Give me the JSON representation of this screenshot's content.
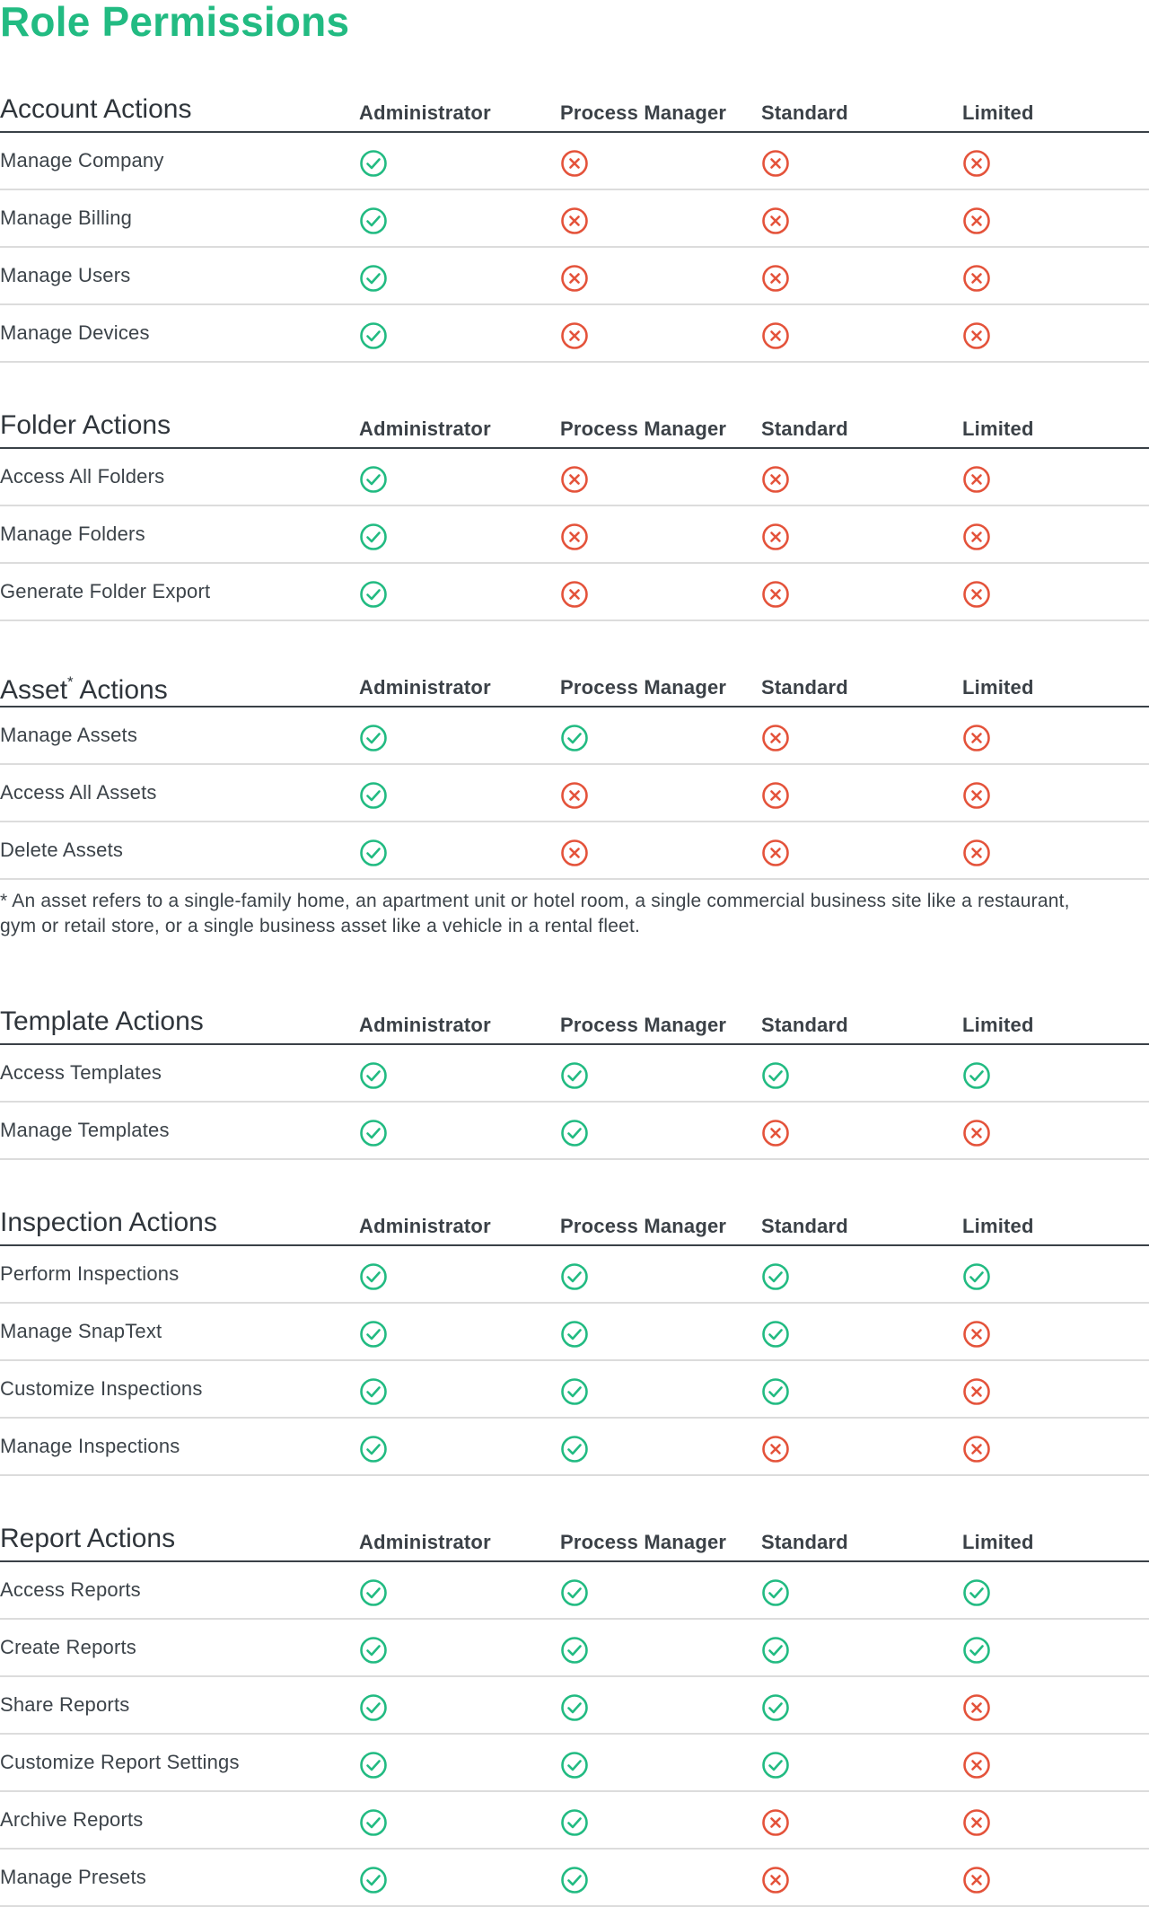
{
  "page": {
    "title": "Role Permissions"
  },
  "columns": [
    "Administrator",
    "Process Manager",
    "Standard",
    "Limited"
  ],
  "colors": {
    "title": "#22bb82",
    "allowed": "#22bb82",
    "denied": "#e4533b"
  },
  "icons": {
    "allowed": "check-circle-icon",
    "denied": "x-circle-icon"
  },
  "sections": [
    {
      "title": "Account Actions",
      "rows": [
        {
          "label": "Manage Company",
          "values": [
            true,
            false,
            false,
            false
          ]
        },
        {
          "label": "Manage Billing",
          "values": [
            true,
            false,
            false,
            false
          ]
        },
        {
          "label": "Manage Users",
          "values": [
            true,
            false,
            false,
            false
          ]
        },
        {
          "label": "Manage Devices",
          "values": [
            true,
            false,
            false,
            false
          ]
        }
      ]
    },
    {
      "title": "Folder Actions",
      "rows": [
        {
          "label": "Access All Folders",
          "values": [
            true,
            false,
            false,
            false
          ]
        },
        {
          "label": "Manage Folders",
          "values": [
            true,
            false,
            false,
            false
          ]
        },
        {
          "label": "Generate Folder Export",
          "values": [
            true,
            false,
            false,
            false
          ]
        }
      ]
    },
    {
      "title": "Asset",
      "title_sup": "*",
      "title_suffix": " Actions",
      "rows": [
        {
          "label": "Manage Assets",
          "values": [
            true,
            true,
            false,
            false
          ]
        },
        {
          "label": "Access All Assets",
          "values": [
            true,
            false,
            false,
            false
          ]
        },
        {
          "label": "Delete Assets",
          "values": [
            true,
            false,
            false,
            false
          ]
        }
      ]
    },
    {
      "title": "Template Actions",
      "rows": [
        {
          "label": "Access Templates",
          "values": [
            true,
            true,
            true,
            true
          ]
        },
        {
          "label": "Manage Templates",
          "values": [
            true,
            true,
            false,
            false
          ]
        }
      ]
    },
    {
      "title": "Inspection Actions",
      "rows": [
        {
          "label": "Perform Inspections",
          "values": [
            true,
            true,
            true,
            true
          ]
        },
        {
          "label": "Manage SnapText",
          "values": [
            true,
            true,
            true,
            false
          ]
        },
        {
          "label": "Customize Inspections",
          "values": [
            true,
            true,
            true,
            false
          ]
        },
        {
          "label": "Manage Inspections",
          "values": [
            true,
            true,
            false,
            false
          ]
        }
      ]
    },
    {
      "title": "Report Actions",
      "rows": [
        {
          "label": "Access Reports",
          "values": [
            true,
            true,
            true,
            true
          ]
        },
        {
          "label": "Create Reports",
          "values": [
            true,
            true,
            true,
            true
          ]
        },
        {
          "label": "Share Reports",
          "values": [
            true,
            true,
            true,
            false
          ]
        },
        {
          "label": "Customize Report Settings",
          "values": [
            true,
            true,
            true,
            false
          ]
        },
        {
          "label": "Archive Reports",
          "values": [
            true,
            true,
            false,
            false
          ]
        },
        {
          "label": "Manage Presets",
          "values": [
            true,
            true,
            false,
            false
          ]
        }
      ]
    }
  ],
  "footnote": "* An asset refers to a single-family home, an apartment unit or hotel room, a single commercial business site like a restaurant, gym or retail store, or a single business asset like a vehicle in a rental fleet."
}
